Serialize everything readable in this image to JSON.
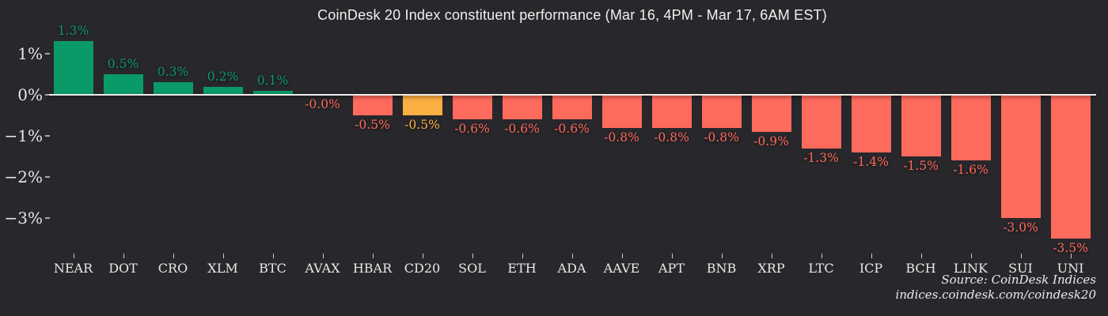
{
  "title": "CoinDesk 20 Index constituent performance (Mar 16, 4PM - Mar 17, 6AM EST)",
  "source": {
    "line1": "Source: CoinDesk Indices",
    "line2": "indices.coindesk.com/coindesk20"
  },
  "colors": {
    "background": "#28272b",
    "positive": "#0a9a68",
    "negative": "#fe6a5c",
    "highlight": "#fbae42",
    "baseline": "#efedea",
    "axis_text": "#eae8e6"
  },
  "chart_data": {
    "type": "bar",
    "title": "CoinDesk 20 Index constituent performance (Mar 16, 4PM - Mar 17, 6AM EST)",
    "categories": [
      "NEAR",
      "DOT",
      "CRO",
      "XLM",
      "BTC",
      "AVAX",
      "HBAR",
      "CD20",
      "SOL",
      "ETH",
      "ADA",
      "AAVE",
      "APT",
      "BNB",
      "XRP",
      "LTC",
      "ICP",
      "BCH",
      "LINK",
      "SUI",
      "UNI"
    ],
    "values": [
      1.3,
      0.5,
      0.3,
      0.2,
      0.1,
      -0.0,
      -0.5,
      -0.5,
      -0.6,
      -0.6,
      -0.6,
      -0.8,
      -0.8,
      -0.8,
      -0.9,
      -1.3,
      -1.4,
      -1.5,
      -1.6,
      -3.0,
      -3.5
    ],
    "value_labels": [
      "1.3%",
      "0.5%",
      "0.3%",
      "0.2%",
      "0.1%",
      "-0.0%",
      "-0.5%",
      "-0.5%",
      "-0.6%",
      "-0.6%",
      "-0.6%",
      "-0.8%",
      "-0.8%",
      "-0.8%",
      "-0.9%",
      "-1.3%",
      "-1.4%",
      "-1.5%",
      "-1.6%",
      "-3.0%",
      "-3.5%"
    ],
    "highlight_category": "CD20",
    "xlabel": "",
    "ylabel": "",
    "y_ticks": [
      {
        "label": "1%",
        "value": 1
      },
      {
        "label": "0%",
        "value": 0
      },
      {
        "label": "−1%",
        "value": -1
      },
      {
        "label": "−2%",
        "value": -2
      },
      {
        "label": "−3%",
        "value": -3
      }
    ],
    "ylim": [
      -3.7,
      1.55
    ],
    "grid": false,
    "legend": false
  }
}
